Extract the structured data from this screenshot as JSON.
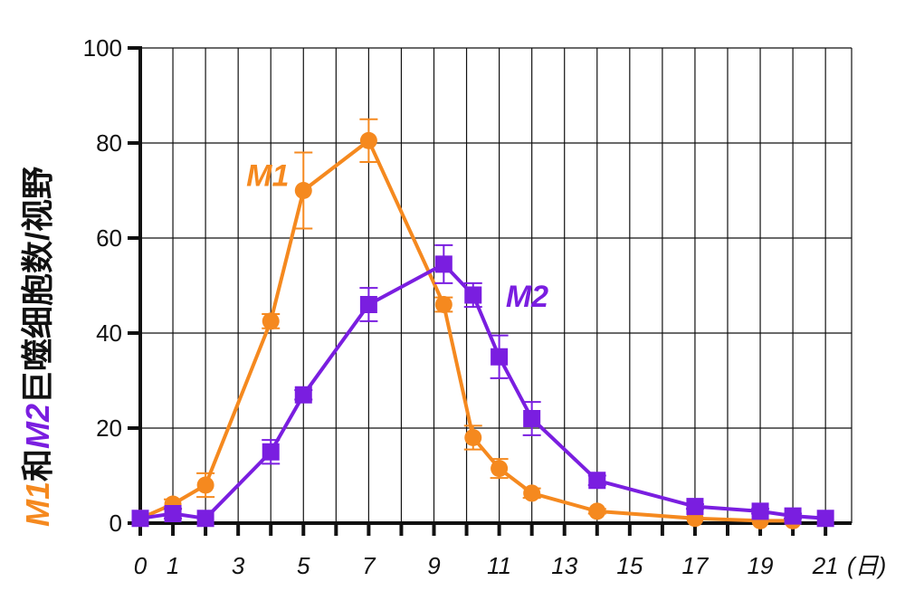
{
  "chart_data": {
    "type": "line",
    "xlabel_unit": "(日)",
    "ylabel": {
      "m1": "M1",
      "conj": "和",
      "m2": "M2",
      "rest": "巨噬细胞数/视野"
    },
    "xlim": [
      0,
      21.8
    ],
    "ylim": [
      0,
      100
    ],
    "x_ticks": [
      0,
      1,
      3,
      5,
      7,
      9,
      11,
      13,
      15,
      17,
      19,
      21
    ],
    "y_ticks": [
      0,
      20,
      40,
      60,
      80,
      100
    ],
    "grid": true,
    "series": [
      {
        "name": "M1",
        "color": "#f5891f",
        "marker": "circle",
        "points": [
          {
            "x": 0,
            "y": 1,
            "err": 0
          },
          {
            "x": 1,
            "y": 4,
            "err": 1
          },
          {
            "x": 2,
            "y": 8,
            "err": 2.5
          },
          {
            "x": 4,
            "y": 42.5,
            "err": 1.5
          },
          {
            "x": 5,
            "y": 70,
            "err": 8
          },
          {
            "x": 7,
            "y": 80.5,
            "err": 4.5
          },
          {
            "x": 9.3,
            "y": 46,
            "err": 1.5
          },
          {
            "x": 10.2,
            "y": 18,
            "err": 2.5
          },
          {
            "x": 11,
            "y": 11.5,
            "err": 2
          },
          {
            "x": 12,
            "y": 6.3,
            "err": 1
          },
          {
            "x": 14,
            "y": 2.5,
            "err": 0.5
          },
          {
            "x": 17,
            "y": 1,
            "err": 0
          },
          {
            "x": 19,
            "y": 0.5,
            "err": 0
          },
          {
            "x": 20,
            "y": 0.5,
            "err": 0
          }
        ]
      },
      {
        "name": "M2",
        "color": "#7a1ee0",
        "marker": "square",
        "points": [
          {
            "x": 0,
            "y": 1,
            "err": 0
          },
          {
            "x": 1,
            "y": 2,
            "err": 1
          },
          {
            "x": 2,
            "y": 1,
            "err": 0
          },
          {
            "x": 4,
            "y": 15,
            "err": 2.5
          },
          {
            "x": 5,
            "y": 27,
            "err": 1
          },
          {
            "x": 7,
            "y": 46,
            "err": 3.5
          },
          {
            "x": 9.3,
            "y": 54.5,
            "err": 4
          },
          {
            "x": 10.2,
            "y": 48,
            "err": 2.5
          },
          {
            "x": 11,
            "y": 35,
            "err": 4.5
          },
          {
            "x": 12,
            "y": 22,
            "err": 3.5
          },
          {
            "x": 14,
            "y": 9,
            "err": 1
          },
          {
            "x": 17,
            "y": 3.5,
            "err": 0.5
          },
          {
            "x": 19,
            "y": 2.5,
            "err": 0.5
          },
          {
            "x": 20,
            "y": 1.5,
            "err": 0.5
          },
          {
            "x": 21,
            "y": 1,
            "err": 0
          }
        ]
      }
    ]
  }
}
